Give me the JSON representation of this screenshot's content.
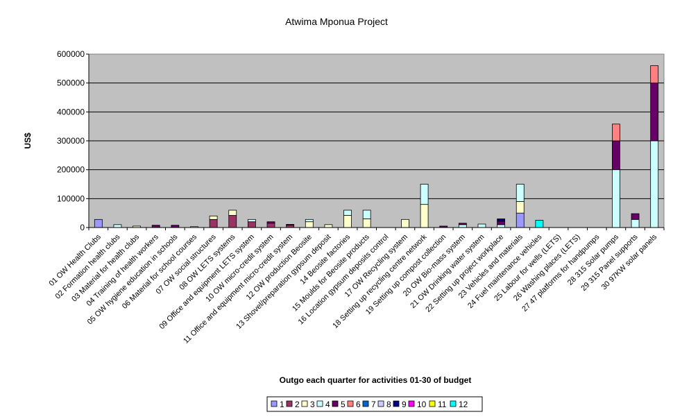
{
  "chart_data": {
    "type": "bar",
    "stacked": true,
    "title": "Atwima Mponua Project",
    "xlabel": "Outgo each quarter for activities 01-30 of budget",
    "ylabel": "US$",
    "ylim": [
      0,
      600000
    ],
    "yticks": [
      0,
      100000,
      200000,
      300000,
      400000,
      500000,
      600000
    ],
    "ytick_labels": [
      "0",
      "100000",
      "200000",
      "300000",
      "400000",
      "500000",
      "600000"
    ],
    "grid": true,
    "legend_position": "bottom",
    "plot_background": "#c0c0c0",
    "categories": [
      "01 OW Health Clubs",
      "02 Formation health clubs",
      "03 Material for health clubs",
      "04 Training of health workers",
      "05 OW hygiene education in schools",
      "06 Material for school courses",
      "07 OW social structures",
      "08 OW LETS systems",
      "09 Office and equipment LETS system",
      "10 OW micro-credit system",
      "11 Office and equipment micro-credit system",
      "12 OW   production Beosite",
      "13 Shovel/preparation gypsum deposit",
      "14 Beosite factories",
      "15 Moulds for Beosite products",
      "16 Location gypsum deposits control",
      "17 OW Recycling system",
      "18 Setting up recycling centre network",
      "19 Setting up compost collection",
      "20 OW Bio-mass system",
      "21 OW Drinking water system",
      "22 Setting up project workplace",
      "23 Vehicles and materials",
      "24 Fuel maintenance vehicles",
      "25 Labour for wells (LETS)",
      "26 Washing places (LETS)",
      "27 47 platforms for handpumps",
      "28 315 Solar pumps",
      "29 315 Panel supports",
      "30 97KW solar panels"
    ],
    "series": [
      {
        "name": "1",
        "color": "#9999ff",
        "values": [
          28000,
          0,
          0,
          0,
          0,
          0,
          0,
          0,
          0,
          0,
          0,
          0,
          0,
          0,
          0,
          0,
          0,
          0,
          0,
          0,
          0,
          0,
          50000,
          0,
          0,
          0,
          0,
          0,
          0,
          0
        ]
      },
      {
        "name": "2",
        "color": "#993366",
        "values": [
          0,
          0,
          0,
          0,
          0,
          0,
          28000,
          42000,
          20000,
          15000,
          8000,
          0,
          0,
          0,
          0,
          0,
          0,
          0,
          0,
          0,
          0,
          0,
          0,
          0,
          0,
          0,
          0,
          0,
          0,
          0
        ]
      },
      {
        "name": "3",
        "color": "#ffffcc",
        "values": [
          0,
          0,
          5000,
          0,
          0,
          3000,
          12000,
          18000,
          0,
          0,
          0,
          20000,
          10000,
          42000,
          30000,
          0,
          28000,
          80000,
          0,
          0,
          0,
          0,
          40000,
          0,
          0,
          0,
          0,
          0,
          0,
          0
        ]
      },
      {
        "name": "4",
        "color": "#ccffff",
        "values": [
          0,
          10000,
          0,
          0,
          0,
          0,
          0,
          0,
          8000,
          0,
          0,
          8000,
          0,
          18000,
          30000,
          0,
          0,
          70000,
          0,
          10000,
          12000,
          10000,
          60000,
          0,
          0,
          0,
          0,
          200000,
          28000,
          300000
        ]
      },
      {
        "name": "5",
        "color": "#660066",
        "values": [
          0,
          0,
          0,
          8000,
          8000,
          0,
          0,
          0,
          0,
          5000,
          3000,
          0,
          0,
          0,
          0,
          0,
          0,
          0,
          5000,
          5000,
          0,
          12000,
          0,
          0,
          0,
          0,
          0,
          100000,
          20000,
          200000
        ]
      },
      {
        "name": "6",
        "color": "#ff8080",
        "values": [
          0,
          0,
          0,
          0,
          0,
          0,
          0,
          0,
          0,
          0,
          0,
          0,
          0,
          0,
          0,
          0,
          0,
          0,
          0,
          0,
          0,
          0,
          0,
          0,
          0,
          0,
          0,
          58000,
          0,
          60000
        ]
      },
      {
        "name": "7",
        "color": "#0066cc",
        "values": [
          0,
          0,
          0,
          0,
          0,
          0,
          0,
          0,
          0,
          0,
          0,
          0,
          0,
          0,
          0,
          0,
          0,
          0,
          0,
          0,
          0,
          0,
          0,
          0,
          0,
          0,
          0,
          0,
          0,
          0
        ]
      },
      {
        "name": "8",
        "color": "#ccccff",
        "values": [
          0,
          0,
          0,
          0,
          0,
          0,
          0,
          0,
          0,
          0,
          0,
          0,
          0,
          0,
          0,
          0,
          0,
          0,
          0,
          0,
          0,
          0,
          0,
          0,
          0,
          0,
          0,
          0,
          0,
          0
        ]
      },
      {
        "name": "9",
        "color": "#000080",
        "values": [
          0,
          0,
          0,
          0,
          0,
          0,
          0,
          0,
          0,
          0,
          0,
          0,
          0,
          0,
          0,
          0,
          0,
          0,
          0,
          0,
          0,
          8000,
          0,
          0,
          0,
          0,
          0,
          0,
          0,
          0
        ]
      },
      {
        "name": "10",
        "color": "#ff00ff",
        "values": [
          0,
          0,
          0,
          0,
          0,
          0,
          0,
          0,
          0,
          0,
          0,
          0,
          0,
          0,
          0,
          0,
          0,
          0,
          0,
          0,
          0,
          0,
          0,
          0,
          0,
          0,
          0,
          0,
          0,
          0
        ]
      },
      {
        "name": "11",
        "color": "#ffff00",
        "values": [
          0,
          0,
          0,
          0,
          0,
          0,
          0,
          0,
          0,
          0,
          0,
          0,
          0,
          0,
          0,
          0,
          0,
          0,
          0,
          0,
          0,
          0,
          0,
          0,
          0,
          0,
          0,
          0,
          0,
          0
        ]
      },
      {
        "name": "12",
        "color": "#00ffff",
        "values": [
          0,
          0,
          0,
          0,
          0,
          0,
          0,
          0,
          0,
          0,
          0,
          0,
          0,
          0,
          0,
          0,
          0,
          0,
          0,
          0,
          0,
          0,
          0,
          25000,
          0,
          0,
          0,
          0,
          0,
          0
        ]
      }
    ]
  }
}
